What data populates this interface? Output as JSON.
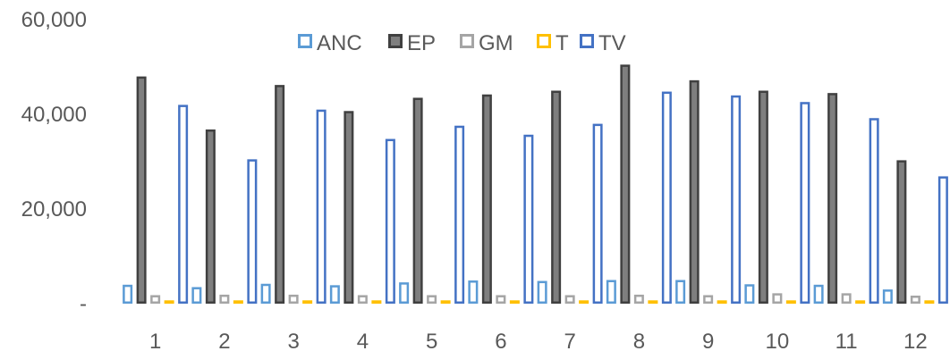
{
  "chart_data": {
    "type": "bar",
    "title": "",
    "xlabel": "",
    "ylabel": "",
    "categories": [
      "1",
      "2",
      "3",
      "4",
      "5",
      "6",
      "7",
      "8",
      "9",
      "10",
      "11",
      "12"
    ],
    "ylim": [
      0,
      60000
    ],
    "yticks": [
      0,
      20000,
      40000,
      60000
    ],
    "ytick_labels": [
      "-",
      "20,000",
      "40,000",
      "60,000"
    ],
    "grid": false,
    "legend_position": "top-center",
    "series": [
      {
        "name": "ANC",
        "color": "#5B9BD5",
        "fill": "none",
        "values": [
          4000,
          3500,
          4200,
          3900,
          4500,
          4900,
          4800,
          5000,
          5000,
          4100,
          4000,
          3000
        ]
      },
      {
        "name": "EP",
        "color": "#404040",
        "fill": "#7F7F7F",
        "values": [
          48000,
          36800,
          46200,
          40700,
          43500,
          44200,
          45000,
          50500,
          47200,
          45000,
          44500,
          30300
        ]
      },
      {
        "name": "GM",
        "color": "#A5A5A5",
        "fill": "none",
        "values": [
          1800,
          1900,
          1900,
          1800,
          1800,
          1800,
          1800,
          1900,
          1800,
          2200,
          2200,
          1700
        ]
      },
      {
        "name": "T",
        "color": "#FFC000",
        "fill": "none",
        "values": [
          700,
          700,
          700,
          700,
          700,
          700,
          700,
          700,
          700,
          700,
          700,
          700
        ]
      },
      {
        "name": "TV",
        "color": "#4472C4",
        "fill": "none",
        "values": [
          42000,
          30500,
          41000,
          34800,
          37600,
          35700,
          38000,
          44800,
          44000,
          42600,
          39200,
          26900
        ]
      }
    ]
  }
}
